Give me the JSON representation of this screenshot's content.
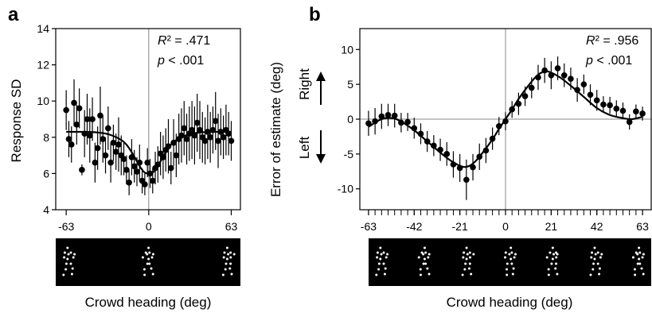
{
  "chart_data": [
    {
      "panel": "a",
      "type": "scatter",
      "ylabel": "Response SD",
      "xlabel": "Crowd heading (deg)",
      "xlim": [
        -71,
        70
      ],
      "ylim": [
        4,
        14
      ],
      "xticks": [
        -63,
        0,
        63
      ],
      "yticks": [
        4,
        6,
        8,
        10,
        12,
        14
      ],
      "annotation": {
        "r2_label": "R² = .471",
        "p_label": "p < .001"
      },
      "points": [
        {
          "x": -63,
          "y": 9.5,
          "err": 1.1
        },
        {
          "x": -61,
          "y": 7.9,
          "err": 1.0
        },
        {
          "x": -59,
          "y": 7.6,
          "err": 1.0
        },
        {
          "x": -57,
          "y": 9.9,
          "err": 1.3
        },
        {
          "x": -55,
          "y": 8.7,
          "err": 1.1
        },
        {
          "x": -53,
          "y": 9.6,
          "err": 1.1
        },
        {
          "x": -51,
          "y": 6.2,
          "err": 0.3
        },
        {
          "x": -49,
          "y": 8.2,
          "err": 1.3
        },
        {
          "x": -47,
          "y": 9.0,
          "err": 1.4
        },
        {
          "x": -45,
          "y": 8.1,
          "err": 1.5
        },
        {
          "x": -43,
          "y": 9.0,
          "err": 1.2
        },
        {
          "x": -41,
          "y": 6.6,
          "err": 1.1
        },
        {
          "x": -39,
          "y": 7.4,
          "err": 1.2
        },
        {
          "x": -37,
          "y": 9.2,
          "err": 1.6
        },
        {
          "x": -35,
          "y": 7.9,
          "err": 1.3
        },
        {
          "x": -33,
          "y": 7.0,
          "err": 1.0
        },
        {
          "x": -31,
          "y": 8.5,
          "err": 1.2
        },
        {
          "x": -29,
          "y": 6.6,
          "err": 1.1
        },
        {
          "x": -27,
          "y": 7.7,
          "err": 1.0
        },
        {
          "x": -25,
          "y": 7.2,
          "err": 1.0
        },
        {
          "x": -23,
          "y": 7.6,
          "err": 1.5
        },
        {
          "x": -21,
          "y": 7.0,
          "err": 1.1
        },
        {
          "x": -19,
          "y": 6.8,
          "err": 0.9
        },
        {
          "x": -17,
          "y": 6.2,
          "err": 0.8
        },
        {
          "x": -15,
          "y": 5.5,
          "err": 0.7
        },
        {
          "x": -13,
          "y": 6.9,
          "err": 1.0
        },
        {
          "x": -11,
          "y": 6.4,
          "err": 0.9
        },
        {
          "x": -9,
          "y": 6.1,
          "err": 0.8
        },
        {
          "x": -7,
          "y": 6.6,
          "err": 1.0
        },
        {
          "x": -5,
          "y": 5.6,
          "err": 0.7
        },
        {
          "x": -3,
          "y": 5.4,
          "err": 0.6
        },
        {
          "x": -1,
          "y": 6.6,
          "err": 0.8
        },
        {
          "x": 1,
          "y": 6.0,
          "err": 0.8
        },
        {
          "x": 3,
          "y": 5.6,
          "err": 0.7
        },
        {
          "x": 5,
          "y": 6.3,
          "err": 0.9
        },
        {
          "x": 7,
          "y": 6.5,
          "err": 1.0
        },
        {
          "x": 9,
          "y": 7.1,
          "err": 1.2
        },
        {
          "x": 11,
          "y": 6.9,
          "err": 1.2
        },
        {
          "x": 13,
          "y": 7.3,
          "err": 1.2
        },
        {
          "x": 15,
          "y": 7.5,
          "err": 1.5
        },
        {
          "x": 17,
          "y": 6.3,
          "err": 0.9
        },
        {
          "x": 19,
          "y": 7.7,
          "err": 1.3
        },
        {
          "x": 21,
          "y": 7.0,
          "err": 1.2
        },
        {
          "x": 23,
          "y": 7.9,
          "err": 1.4
        },
        {
          "x": 25,
          "y": 8.1,
          "err": 1.5
        },
        {
          "x": 27,
          "y": 8.5,
          "err": 1.5
        },
        {
          "x": 29,
          "y": 7.9,
          "err": 1.4
        },
        {
          "x": 31,
          "y": 8.2,
          "err": 1.5
        },
        {
          "x": 33,
          "y": 8.4,
          "err": 1.6
        },
        {
          "x": 35,
          "y": 8.1,
          "err": 1.6
        },
        {
          "x": 37,
          "y": 8.8,
          "err": 1.6
        },
        {
          "x": 39,
          "y": 8.4,
          "err": 1.6
        },
        {
          "x": 41,
          "y": 8.0,
          "err": 1.4
        },
        {
          "x": 43,
          "y": 7.8,
          "err": 1.3
        },
        {
          "x": 45,
          "y": 8.3,
          "err": 1.5
        },
        {
          "x": 47,
          "y": 8.0,
          "err": 1.4
        },
        {
          "x": 49,
          "y": 8.4,
          "err": 1.3
        },
        {
          "x": 51,
          "y": 8.9,
          "err": 1.6
        },
        {
          "x": 53,
          "y": 7.8,
          "err": 1.5
        },
        {
          "x": 55,
          "y": 8.3,
          "err": 1.3
        },
        {
          "x": 57,
          "y": 8.0,
          "err": 1.2
        },
        {
          "x": 59,
          "y": 8.4,
          "err": 1.4
        },
        {
          "x": 61,
          "y": 8.2,
          "err": 1.2
        },
        {
          "x": 63,
          "y": 7.8,
          "err": 1.1
        }
      ],
      "fit": [
        {
          "x": -63,
          "y": 8.3
        },
        {
          "x": -50,
          "y": 8.3
        },
        {
          "x": -40,
          "y": 8.27
        },
        {
          "x": -30,
          "y": 8.15
        },
        {
          "x": -20,
          "y": 7.8
        },
        {
          "x": -15,
          "y": 7.4
        },
        {
          "x": -10,
          "y": 6.8
        },
        {
          "x": -6,
          "y": 6.3
        },
        {
          "x": -3,
          "y": 6.05
        },
        {
          "x": 0,
          "y": 6.0
        },
        {
          "x": 3,
          "y": 6.05
        },
        {
          "x": 6,
          "y": 6.3
        },
        {
          "x": 10,
          "y": 6.8
        },
        {
          "x": 15,
          "y": 7.4
        },
        {
          "x": 20,
          "y": 7.8
        },
        {
          "x": 30,
          "y": 8.15
        },
        {
          "x": 40,
          "y": 8.27
        },
        {
          "x": 50,
          "y": 8.3
        },
        {
          "x": 63,
          "y": 8.3
        }
      ],
      "stimulus_frames": 3
    },
    {
      "panel": "b",
      "type": "scatter",
      "ylabel": "Error of estimate (deg)",
      "direction_labels": {
        "up": "Right",
        "down": "Left"
      },
      "xlabel": "Crowd heading (deg)",
      "xlim": [
        -67,
        67
      ],
      "ylim": [
        -13,
        13
      ],
      "xticks": [
        -63,
        -42,
        -21,
        0,
        21,
        42,
        63
      ],
      "yticks": [
        -10,
        -5,
        0,
        5,
        10
      ],
      "annotation": {
        "r2_label": "R² = .956",
        "p_label": "p < .001"
      },
      "points": [
        {
          "x": -63,
          "y": -0.6,
          "err": 1.8
        },
        {
          "x": -60,
          "y": -0.3,
          "err": 1.9
        },
        {
          "x": -57,
          "y": 0.4,
          "err": 1.8
        },
        {
          "x": -54,
          "y": 0.6,
          "err": 1.6
        },
        {
          "x": -51,
          "y": 0.5,
          "err": 1.7
        },
        {
          "x": -48,
          "y": -0.5,
          "err": 1.4
        },
        {
          "x": -45,
          "y": -0.4,
          "err": 1.3
        },
        {
          "x": -42,
          "y": -1.3,
          "err": 1.5
        },
        {
          "x": -39,
          "y": -2.1,
          "err": 1.5
        },
        {
          "x": -36,
          "y": -3.2,
          "err": 1.5
        },
        {
          "x": -33,
          "y": -3.8,
          "err": 1.5
        },
        {
          "x": -30,
          "y": -4.4,
          "err": 1.6
        },
        {
          "x": -27,
          "y": -5.0,
          "err": 1.7
        },
        {
          "x": -24,
          "y": -6.5,
          "err": 1.9
        },
        {
          "x": -21,
          "y": -7.0,
          "err": 2.0
        },
        {
          "x": -18,
          "y": -8.7,
          "err": 2.9
        },
        {
          "x": -15,
          "y": -6.9,
          "err": 1.9
        },
        {
          "x": -12,
          "y": -5.4,
          "err": 1.9
        },
        {
          "x": -9,
          "y": -4.5,
          "err": 1.8
        },
        {
          "x": -6,
          "y": -2.8,
          "err": 1.6
        },
        {
          "x": -3,
          "y": -1.0,
          "err": 1.3
        },
        {
          "x": 0,
          "y": -0.3,
          "err": 1.3
        },
        {
          "x": 3,
          "y": 1.4,
          "err": 1.2
        },
        {
          "x": 6,
          "y": 2.2,
          "err": 1.6
        },
        {
          "x": 9,
          "y": 3.3,
          "err": 1.4
        },
        {
          "x": 12,
          "y": 4.5,
          "err": 1.5
        },
        {
          "x": 15,
          "y": 6.0,
          "err": 1.8
        },
        {
          "x": 18,
          "y": 7.0,
          "err": 1.8
        },
        {
          "x": 21,
          "y": 6.3,
          "err": 2.0
        },
        {
          "x": 24,
          "y": 7.3,
          "err": 1.7
        },
        {
          "x": 27,
          "y": 6.3,
          "err": 1.7
        },
        {
          "x": 30,
          "y": 5.8,
          "err": 1.6
        },
        {
          "x": 33,
          "y": 4.2,
          "err": 1.7
        },
        {
          "x": 36,
          "y": 5.0,
          "err": 1.4
        },
        {
          "x": 39,
          "y": 3.5,
          "err": 1.5
        },
        {
          "x": 42,
          "y": 2.7,
          "err": 1.5
        },
        {
          "x": 45,
          "y": 2.1,
          "err": 1.2
        },
        {
          "x": 48,
          "y": 2.0,
          "err": 1.2
        },
        {
          "x": 51,
          "y": 1.5,
          "err": 1.2
        },
        {
          "x": 54,
          "y": 1.2,
          "err": 1.2
        },
        {
          "x": 57,
          "y": -0.4,
          "err": 1.1
        },
        {
          "x": 60,
          "y": 1.1,
          "err": 1.0
        },
        {
          "x": 63,
          "y": 0.8,
          "err": 1.0
        }
      ],
      "fit": [
        {
          "x": -63,
          "y": -1.1
        },
        {
          "x": -57,
          "y": 0.0
        },
        {
          "x": -52,
          "y": 0.15
        },
        {
          "x": -48,
          "y": -0.35
        },
        {
          "x": -42,
          "y": -1.6
        },
        {
          "x": -36,
          "y": -3.2
        },
        {
          "x": -30,
          "y": -4.8
        },
        {
          "x": -25,
          "y": -6.0
        },
        {
          "x": -20,
          "y": -6.8
        },
        {
          "x": -17,
          "y": -6.75
        },
        {
          "x": -14,
          "y": -6.1
        },
        {
          "x": -10,
          "y": -4.6
        },
        {
          "x": -6,
          "y": -2.9
        },
        {
          "x": -3,
          "y": -1.4
        },
        {
          "x": 0,
          "y": 0.0
        },
        {
          "x": 3,
          "y": 1.4
        },
        {
          "x": 6,
          "y": 2.9
        },
        {
          "x": 10,
          "y": 4.6
        },
        {
          "x": 14,
          "y": 6.1
        },
        {
          "x": 17,
          "y": 6.75
        },
        {
          "x": 20,
          "y": 6.8
        },
        {
          "x": 25,
          "y": 6.0
        },
        {
          "x": 30,
          "y": 4.8
        },
        {
          "x": 36,
          "y": 3.2
        },
        {
          "x": 42,
          "y": 1.6
        },
        {
          "x": 48,
          "y": 0.6
        },
        {
          "x": 54,
          "y": 0.15
        },
        {
          "x": 58,
          "y": 0.0
        },
        {
          "x": 63,
          "y": 0.35
        }
      ],
      "stimulus_frames": 7
    }
  ]
}
